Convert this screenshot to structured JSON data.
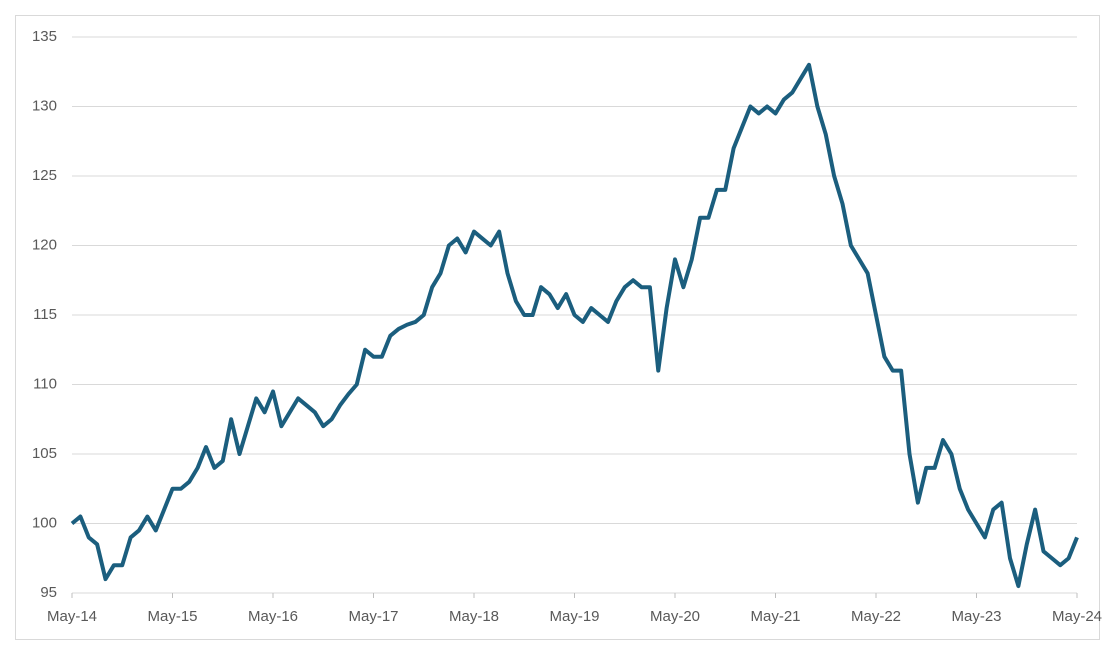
{
  "chart_data": {
    "type": "line",
    "categories": [
      "May-14",
      null,
      null,
      null,
      null,
      null,
      null,
      null,
      null,
      null,
      null,
      null,
      "May-15",
      null,
      null,
      null,
      null,
      null,
      null,
      null,
      null,
      null,
      null,
      null,
      "May-16",
      null,
      null,
      null,
      null,
      null,
      null,
      null,
      null,
      null,
      null,
      null,
      "May-17",
      null,
      null,
      null,
      null,
      null,
      null,
      null,
      null,
      null,
      null,
      null,
      "May-18",
      null,
      null,
      null,
      null,
      null,
      null,
      null,
      null,
      null,
      null,
      null,
      "May-19",
      null,
      null,
      null,
      null,
      null,
      null,
      null,
      null,
      null,
      null,
      null,
      "May-20",
      null,
      null,
      null,
      null,
      null,
      null,
      null,
      null,
      null,
      null,
      null,
      "May-21",
      null,
      null,
      null,
      null,
      null,
      null,
      null,
      null,
      null,
      null,
      null,
      "May-22",
      null,
      null,
      null,
      null,
      null,
      null,
      null,
      null,
      null,
      null,
      null,
      "May-23",
      null,
      null,
      null,
      null,
      null,
      null,
      null,
      null,
      null,
      null,
      null,
      "May-24"
    ],
    "values": [
      100,
      100.5,
      99,
      98.5,
      96,
      97,
      97,
      99,
      99.5,
      100.5,
      99.5,
      101,
      102.5,
      102.5,
      103,
      104,
      105.5,
      104,
      104.5,
      107.5,
      105,
      107,
      109,
      108,
      109.5,
      107,
      108,
      109,
      108.5,
      108,
      107,
      107.5,
      108.5,
      109.3,
      110,
      112.5,
      112,
      112,
      113.5,
      114,
      114.3,
      114.5,
      115,
      117,
      118,
      120,
      120.5,
      119.5,
      121,
      120.5,
      120,
      121,
      118,
      116,
      115,
      115,
      117,
      116.5,
      115.5,
      116.5,
      115,
      114.5,
      115.5,
      115,
      114.5,
      116,
      117,
      117.5,
      117,
      117,
      111,
      115.5,
      119,
      117,
      119,
      122,
      122,
      124,
      124,
      127,
      128.5,
      130,
      129.5,
      130,
      129.5,
      130.5,
      131,
      132,
      133,
      130,
      128,
      125,
      123,
      120,
      119,
      118,
      115,
      112,
      111,
      111,
      105,
      101.5,
      104,
      104,
      106,
      105,
      102.5,
      101,
      100,
      99,
      101,
      101.5,
      97.5,
      95.5,
      98.5,
      101,
      98,
      97.5,
      97,
      97.5,
      99
    ],
    "color": "#1b5e7e",
    "ylim": [
      95,
      135
    ],
    "yticks": [
      95,
      100,
      105,
      110,
      115,
      120,
      125,
      130,
      135
    ],
    "grid": true
  }
}
